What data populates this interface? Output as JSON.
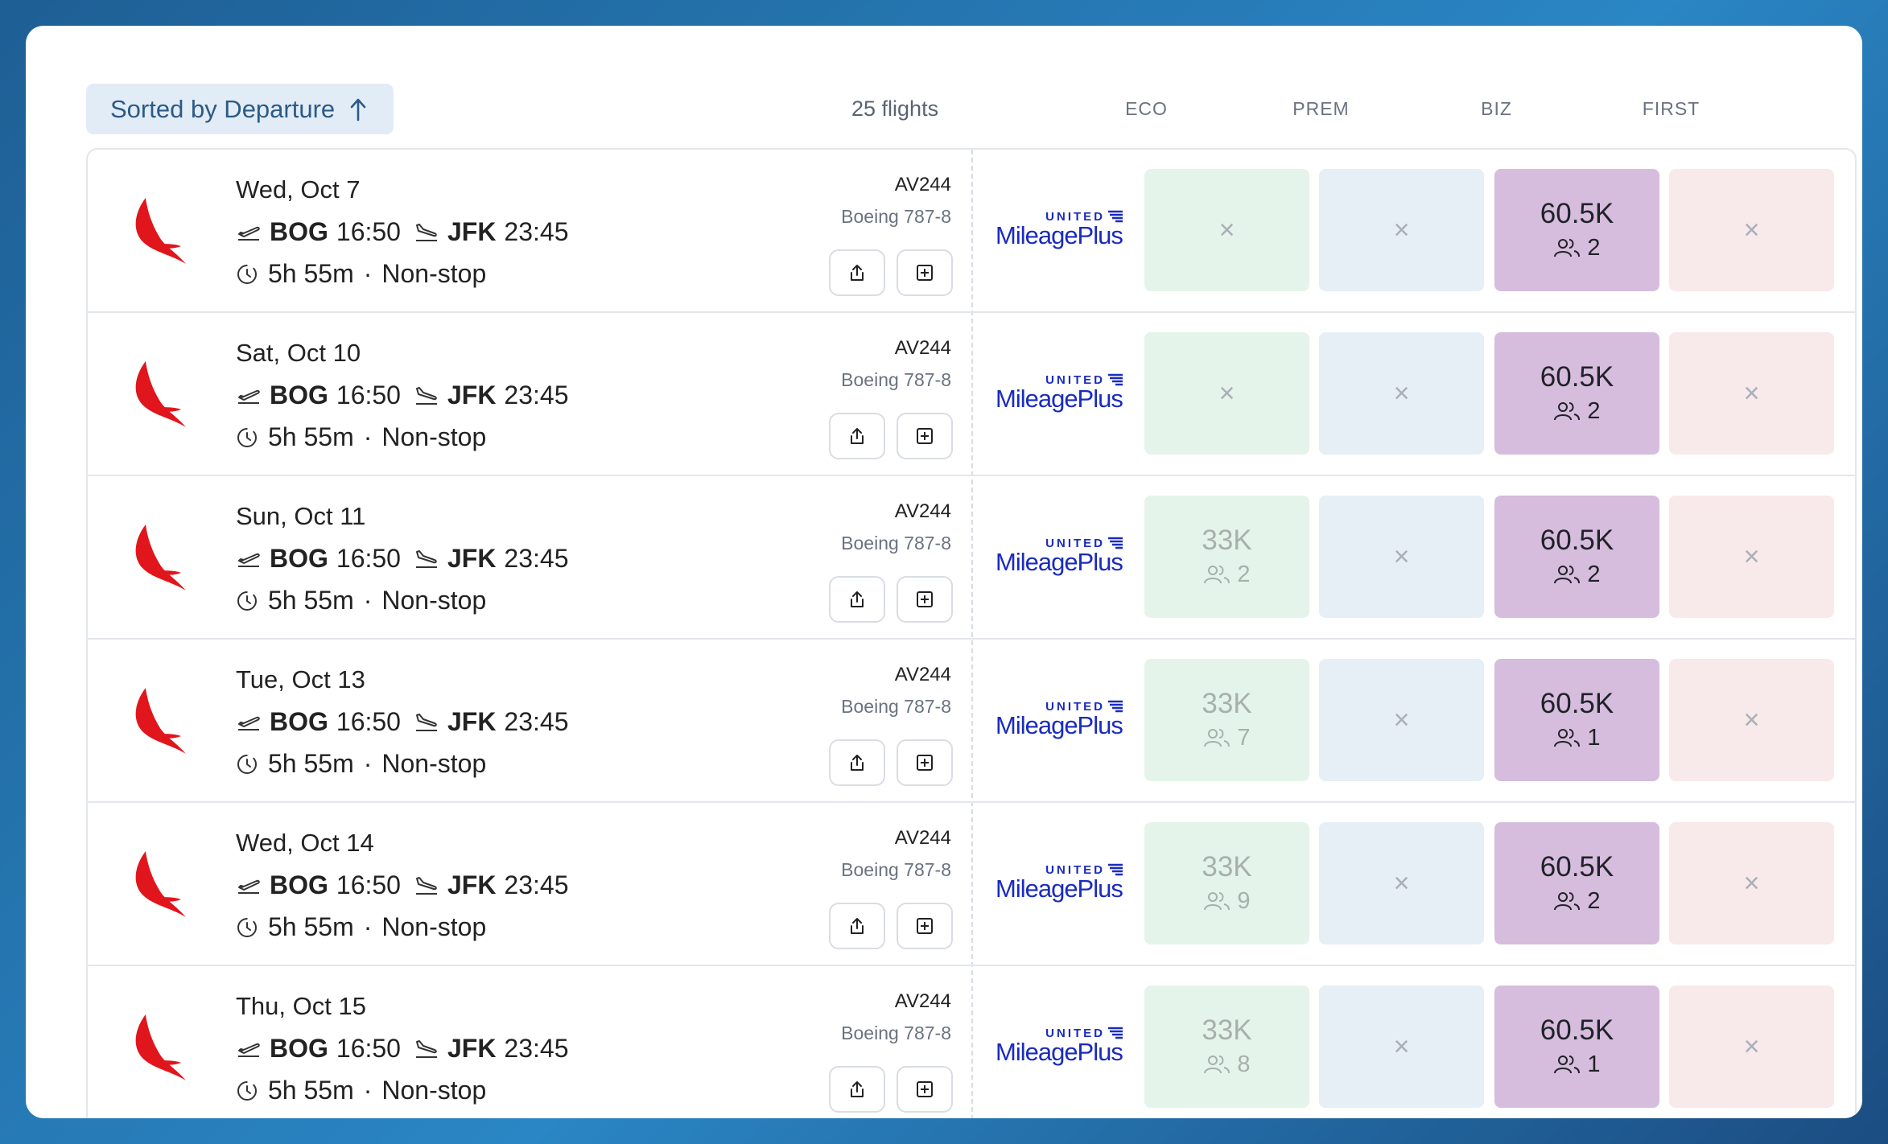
{
  "toolbar": {
    "sort_label": "Sorted by Departure",
    "count_label": "25 flights"
  },
  "columns": [
    "ECO",
    "PREM",
    "BIZ",
    "FIRST"
  ],
  "program": {
    "top": "UNITED",
    "bottom": "MileagePlus"
  },
  "colors": {
    "accent": "#2c5a86",
    "eco": "#e4f4ea",
    "prem": "#e6eef6",
    "biz": "#d6bcdd",
    "first": "#f8e9ea",
    "airline_logo": "#e0161c",
    "program": "#1a2bbf"
  },
  "icons": [
    "arrow-up-icon",
    "takeoff-icon",
    "landing-icon",
    "clock-icon",
    "share-icon",
    "add-icon",
    "close-icon",
    "seats-icon",
    "airline-logo-icon",
    "united-flag-icon"
  ],
  "flights": [
    {
      "date": "Wed, Oct 7",
      "from": "BOG",
      "dep": "16:50",
      "to": "JFK",
      "arr": "23:45",
      "duration": "5h 55m",
      "dot": "·",
      "stops": "Non-stop",
      "flight_no": "AV244",
      "aircraft": "Boeing 787-8",
      "eco": {
        "price": "",
        "seats": "",
        "x": "×"
      },
      "prem": {
        "price": "",
        "seats": "",
        "x": "×"
      },
      "biz": {
        "price": "60.5K",
        "seats": "2",
        "x": ""
      },
      "first": {
        "price": "",
        "seats": "",
        "x": "×"
      }
    },
    {
      "date": "Sat, Oct 10",
      "from": "BOG",
      "dep": "16:50",
      "to": "JFK",
      "arr": "23:45",
      "duration": "5h 55m",
      "dot": "·",
      "stops": "Non-stop",
      "flight_no": "AV244",
      "aircraft": "Boeing 787-8",
      "eco": {
        "price": "",
        "seats": "",
        "x": "×"
      },
      "prem": {
        "price": "",
        "seats": "",
        "x": "×"
      },
      "biz": {
        "price": "60.5K",
        "seats": "2",
        "x": ""
      },
      "first": {
        "price": "",
        "seats": "",
        "x": "×"
      }
    },
    {
      "date": "Sun, Oct 11",
      "from": "BOG",
      "dep": "16:50",
      "to": "JFK",
      "arr": "23:45",
      "duration": "5h 55m",
      "dot": "·",
      "stops": "Non-stop",
      "flight_no": "AV244",
      "aircraft": "Boeing 787-8",
      "eco": {
        "price": "33K",
        "seats": "2",
        "x": ""
      },
      "prem": {
        "price": "",
        "seats": "",
        "x": "×"
      },
      "biz": {
        "price": "60.5K",
        "seats": "2",
        "x": ""
      },
      "first": {
        "price": "",
        "seats": "",
        "x": "×"
      }
    },
    {
      "date": "Tue, Oct 13",
      "from": "BOG",
      "dep": "16:50",
      "to": "JFK",
      "arr": "23:45",
      "duration": "5h 55m",
      "dot": "·",
      "stops": "Non-stop",
      "flight_no": "AV244",
      "aircraft": "Boeing 787-8",
      "eco": {
        "price": "33K",
        "seats": "7",
        "x": ""
      },
      "prem": {
        "price": "",
        "seats": "",
        "x": "×"
      },
      "biz": {
        "price": "60.5K",
        "seats": "1",
        "x": ""
      },
      "first": {
        "price": "",
        "seats": "",
        "x": "×"
      }
    },
    {
      "date": "Wed, Oct 14",
      "from": "BOG",
      "dep": "16:50",
      "to": "JFK",
      "arr": "23:45",
      "duration": "5h 55m",
      "dot": "·",
      "stops": "Non-stop",
      "flight_no": "AV244",
      "aircraft": "Boeing 787-8",
      "eco": {
        "price": "33K",
        "seats": "9",
        "x": ""
      },
      "prem": {
        "price": "",
        "seats": "",
        "x": "×"
      },
      "biz": {
        "price": "60.5K",
        "seats": "2",
        "x": ""
      },
      "first": {
        "price": "",
        "seats": "",
        "x": "×"
      }
    },
    {
      "date": "Thu, Oct 15",
      "from": "BOG",
      "dep": "16:50",
      "to": "JFK",
      "arr": "23:45",
      "duration": "5h 55m",
      "dot": "·",
      "stops": "Non-stop",
      "flight_no": "AV244",
      "aircraft": "Boeing 787-8",
      "eco": {
        "price": "33K",
        "seats": "8",
        "x": ""
      },
      "prem": {
        "price": "",
        "seats": "",
        "x": "×"
      },
      "biz": {
        "price": "60.5K",
        "seats": "1",
        "x": ""
      },
      "first": {
        "price": "",
        "seats": "",
        "x": "×"
      }
    }
  ]
}
